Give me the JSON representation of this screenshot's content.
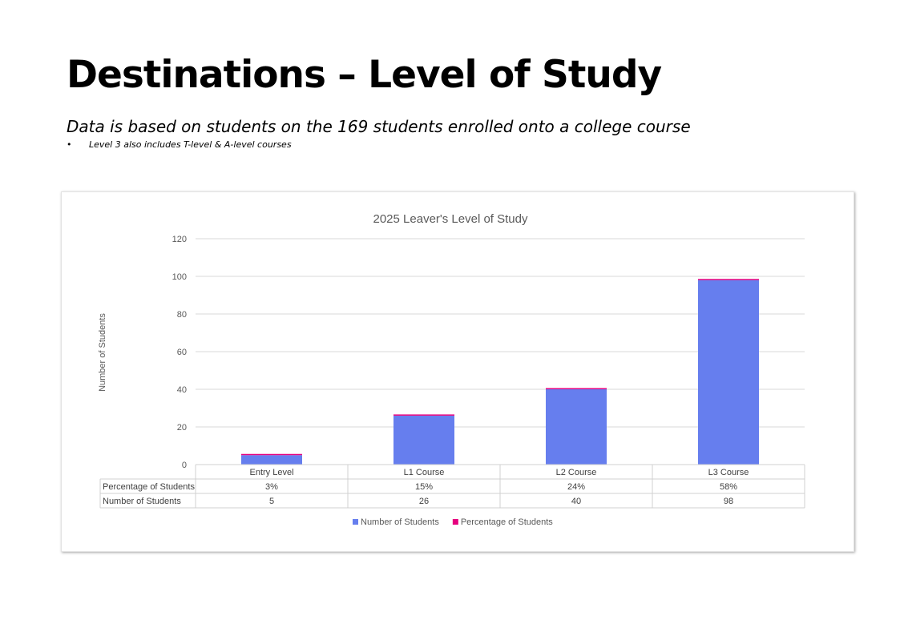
{
  "page": {
    "title": "Destinations – Level of Study",
    "subtitle": "Data is based on students on the 169 students enrolled onto a college course",
    "note_bullet": "•",
    "note": "Level 3 also includes  T-level & A-level courses"
  },
  "colors": {
    "number_series": "#667eee",
    "percentage_series": "#e6007e",
    "gridline": "#d9d9d9",
    "table_border": "#d0d0d0",
    "text": "#595959"
  },
  "chart_data": {
    "type": "bar",
    "stacked": true,
    "title": "2025 Leaver's Level of Study",
    "xlabel": "",
    "ylabel": "Number of Students",
    "ylim": [
      0,
      120
    ],
    "yticks": [
      0,
      20,
      40,
      60,
      80,
      100,
      120
    ],
    "grid": true,
    "legend_position": "bottom",
    "data_table": true,
    "categories": [
      "Entry Level",
      "L1 Course",
      "L2 Course",
      "L3 Course"
    ],
    "series": [
      {
        "name": "Number of Students",
        "values": [
          5,
          26,
          40,
          98
        ],
        "labels": [
          "5",
          "26",
          "40",
          "98"
        ],
        "color": "#667eee"
      },
      {
        "name": "Percentage of Students",
        "values": [
          0.03,
          0.15,
          0.24,
          0.58
        ],
        "labels": [
          "3%",
          "15%",
          "24%",
          "58%"
        ],
        "color": "#e6007e"
      }
    ],
    "table_row_order": [
      1,
      0
    ],
    "legend_order": [
      0,
      1
    ]
  }
}
